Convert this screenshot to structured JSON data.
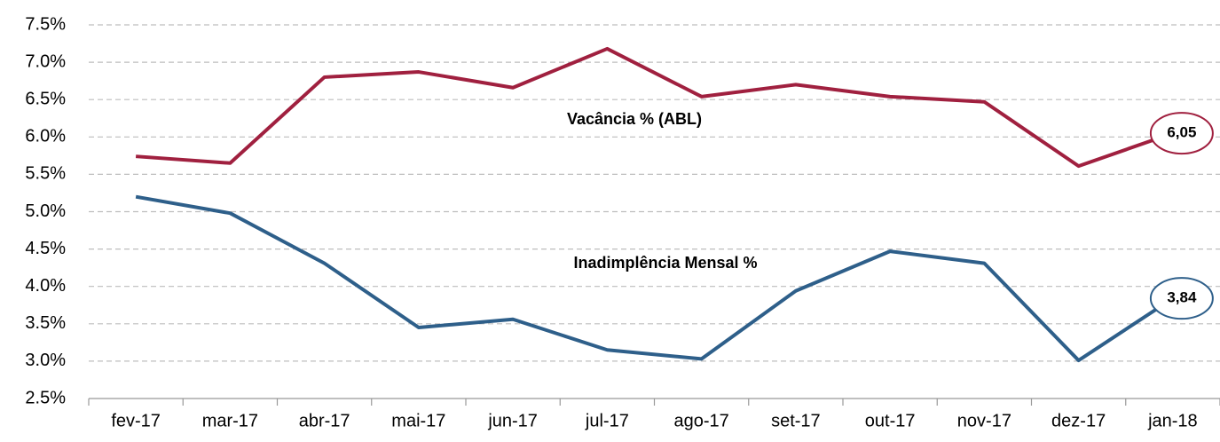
{
  "chart_data": {
    "type": "line",
    "categories": [
      "fev-17",
      "mar-17",
      "abr-17",
      "mai-17",
      "jun-17",
      "jul-17",
      "ago-17",
      "set-17",
      "out-17",
      "nov-17",
      "dez-17",
      "jan-18"
    ],
    "series": [
      {
        "name": "Vacância % (ABL)",
        "color": "#a0203f",
        "values": [
          5.74,
          5.65,
          6.8,
          6.87,
          6.66,
          7.18,
          6.54,
          6.7,
          6.54,
          6.47,
          5.61,
          6.05
        ],
        "value_labels": [
          null,
          null,
          null,
          null,
          null,
          null,
          null,
          null,
          null,
          null,
          null,
          "6,05"
        ]
      },
      {
        "name": "Inadimplência Mensal %",
        "color": "#2e5f8a",
        "values": [
          5.2,
          4.98,
          4.31,
          3.45,
          3.56,
          3.15,
          3.03,
          3.94,
          4.47,
          4.31,
          3.01,
          3.84
        ],
        "value_labels": [
          null,
          null,
          null,
          null,
          null,
          null,
          null,
          null,
          null,
          null,
          null,
          "3,84"
        ]
      }
    ],
    "ylim": [
      2.5,
      7.5
    ],
    "yticks": [
      {
        "value": 2.5,
        "label": "2.5%"
      },
      {
        "value": 3.0,
        "label": "3.0%"
      },
      {
        "value": 3.5,
        "label": "3.5%"
      },
      {
        "value": 4.0,
        "label": "4.0%"
      },
      {
        "value": 4.5,
        "label": "4.5%"
      },
      {
        "value": 5.0,
        "label": "5.0%"
      },
      {
        "value": 5.5,
        "label": "5.5%"
      },
      {
        "value": 6.0,
        "label": "6.0%"
      },
      {
        "value": 6.5,
        "label": "6.5%"
      },
      {
        "value": 7.0,
        "label": "7.0%"
      },
      {
        "value": 7.5,
        "label": "7.5%"
      }
    ],
    "grid": true
  }
}
